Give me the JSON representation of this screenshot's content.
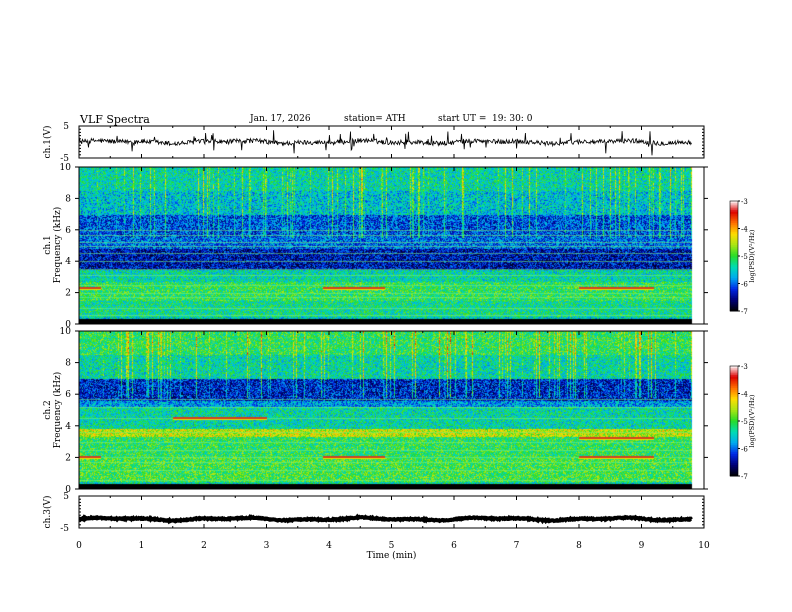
{
  "header": {
    "title": "VLF  Spectra",
    "date": "Jan. 17, 2026",
    "station": "station= ATH",
    "start_label": "start  UT  =",
    "start_value": "19: 30: 0"
  },
  "panels": {
    "ch1_waveform_label": "ch.1(V)",
    "ch1_spec_label": "ch.1",
    "ch2_spec_label": "ch.2",
    "ch3_waveform_label": "ch.3(V)",
    "freq_label": "Frequency (kHz)",
    "colorbar_label": "log(PSD) (V²/Hz)"
  },
  "chart_data": [
    {
      "type": "line",
      "name": "ch1-waveform",
      "ylabel": "ch.1(V)",
      "xlim": [
        0,
        10
      ],
      "ylim": [
        -5,
        5
      ],
      "y_ticks": [
        "5",
        "-5"
      ],
      "mean_value": 0,
      "noise_range": [
        -1,
        1.5
      ],
      "data_extent_min": 9.8
    },
    {
      "type": "heatmap",
      "name": "ch1-spectrogram",
      "ylabel": "Frequency (kHz)",
      "xlim": [
        0,
        10
      ],
      "ylim": [
        0,
        10
      ],
      "y_ticks": [
        "0",
        "2",
        "4",
        "6",
        "8",
        "10"
      ],
      "colorbar": {
        "label": "log(PSD)(V²/Hz)",
        "ticks": [
          "-3",
          "-4",
          "-5",
          "-6",
          "-7"
        ],
        "range": [
          -7,
          -3
        ]
      },
      "lines_khz": [
        0.6,
        1.0,
        1.7,
        2.0,
        2.5,
        3.1,
        3.5,
        4.0,
        4.5,
        5.0,
        5.2,
        5.7,
        6.0
      ],
      "segments": [
        {
          "f": 2.3,
          "t0": 0.0,
          "t1": 0.35
        },
        {
          "f": 2.3,
          "t0": 3.9,
          "t1": 4.9
        },
        {
          "f": 2.3,
          "t0": 8.0,
          "t1": 9.2
        }
      ]
    },
    {
      "type": "heatmap",
      "name": "ch2-spectrogram",
      "ylabel": "Frequency (kHz)",
      "xlim": [
        0,
        10
      ],
      "ylim": [
        0,
        10
      ],
      "y_ticks": [
        "0",
        "2",
        "4",
        "6",
        "8",
        "10"
      ],
      "colorbar": {
        "label": "log(PSD)(V²/Hz)",
        "ticks": [
          "-3",
          "-4",
          "-5",
          "-6",
          "-7"
        ],
        "range": [
          -7,
          -3
        ]
      },
      "lines_khz": [
        0.6,
        1.2,
        1.7,
        2.0,
        2.5,
        3.0,
        3.6,
        4.5,
        5.2,
        5.7
      ],
      "segments": [
        {
          "f": 2.0,
          "t0": 0.0,
          "t1": 0.35
        },
        {
          "f": 2.0,
          "t0": 3.9,
          "t1": 4.9
        },
        {
          "f": 2.0,
          "t0": 8.0,
          "t1": 9.2
        },
        {
          "f": 3.2,
          "t0": 8.0,
          "t1": 9.2
        },
        {
          "f": 4.5,
          "t0": 1.5,
          "t1": 3.0
        }
      ]
    },
    {
      "type": "line",
      "name": "ch3-waveform",
      "ylabel": "ch.3(V)",
      "xlabel": "Time (min)",
      "xlim": [
        0,
        10
      ],
      "ylim": [
        -5,
        5
      ],
      "y_ticks": [
        "5",
        "-5"
      ],
      "x_ticks": [
        "0",
        "1",
        "2",
        "3",
        "4",
        "5",
        "6",
        "7",
        "8",
        "9",
        "10"
      ],
      "mean_value": -2.2,
      "noise_range": [
        -2.5,
        -1.9
      ],
      "data_extent_min": 9.8
    }
  ]
}
